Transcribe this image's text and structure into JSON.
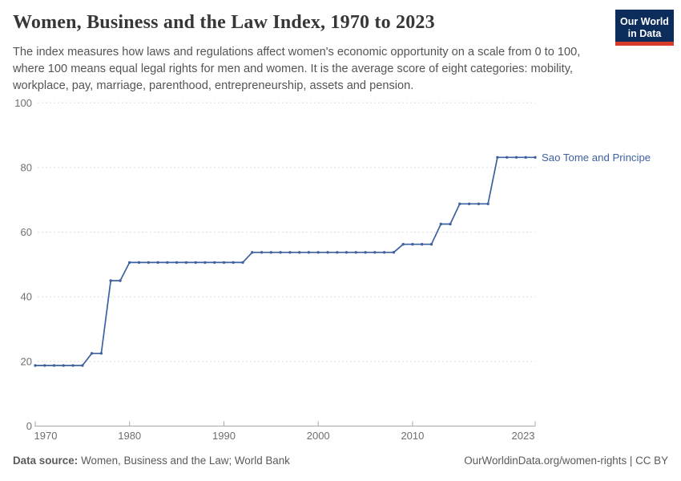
{
  "header": {
    "title": "Women, Business and the Law Index, 1970 to 2023",
    "subtitle_lines": [
      "The index measures how laws and regulations affect women's economic opportunity on a scale from 0 to 100,",
      "where 100 means equal legal rights for men and women. It is the average score of eight categories: mobility,",
      "workplace, pay, marriage, parenthood, entrepreneurship, assets and pension."
    ],
    "logo": {
      "line1": "Our World",
      "line2": "in Data"
    }
  },
  "chart_data": {
    "type": "line",
    "title": "Women, Business and the Law Index, 1970 to 2023",
    "xlabel": "",
    "ylabel": "",
    "xlim": [
      1970,
      2023
    ],
    "ylim": [
      0,
      100
    ],
    "xticks": [
      1970,
      1980,
      1990,
      2000,
      2010,
      2023
    ],
    "yticks": [
      0,
      20,
      40,
      60,
      80,
      100
    ],
    "grid": "horizontal-dashed",
    "legend_position": "end-of-line-label",
    "series": [
      {
        "name": "Sao Tome and Principe",
        "color": "#3d609f",
        "points": [
          [
            1970,
            18.75
          ],
          [
            1971,
            18.75
          ],
          [
            1972,
            18.75
          ],
          [
            1973,
            18.75
          ],
          [
            1974,
            18.75
          ],
          [
            1975,
            18.75
          ],
          [
            1976,
            22.5
          ],
          [
            1977,
            22.5
          ],
          [
            1978,
            45
          ],
          [
            1979,
            45
          ],
          [
            1980,
            50.625
          ],
          [
            1981,
            50.625
          ],
          [
            1982,
            50.625
          ],
          [
            1983,
            50.625
          ],
          [
            1984,
            50.625
          ],
          [
            1985,
            50.625
          ],
          [
            1986,
            50.625
          ],
          [
            1987,
            50.625
          ],
          [
            1988,
            50.625
          ],
          [
            1989,
            50.625
          ],
          [
            1990,
            50.625
          ],
          [
            1991,
            50.625
          ],
          [
            1992,
            50.625
          ],
          [
            1993,
            53.75
          ],
          [
            1994,
            53.75
          ],
          [
            1995,
            53.75
          ],
          [
            1996,
            53.75
          ],
          [
            1997,
            53.75
          ],
          [
            1998,
            53.75
          ],
          [
            1999,
            53.75
          ],
          [
            2000,
            53.75
          ],
          [
            2001,
            53.75
          ],
          [
            2002,
            53.75
          ],
          [
            2003,
            53.75
          ],
          [
            2004,
            53.75
          ],
          [
            2005,
            53.75
          ],
          [
            2006,
            53.75
          ],
          [
            2007,
            53.75
          ],
          [
            2008,
            53.75
          ],
          [
            2009,
            56.25
          ],
          [
            2010,
            56.25
          ],
          [
            2011,
            56.25
          ],
          [
            2012,
            56.25
          ],
          [
            2013,
            62.5
          ],
          [
            2014,
            62.5
          ],
          [
            2015,
            68.75
          ],
          [
            2016,
            68.75
          ],
          [
            2017,
            68.75
          ],
          [
            2018,
            68.75
          ],
          [
            2019,
            83.125
          ],
          [
            2020,
            83.125
          ],
          [
            2021,
            83.125
          ],
          [
            2022,
            83.125
          ],
          [
            2023,
            83.125
          ]
        ]
      }
    ],
    "colors": {
      "line": "#3d609f",
      "gridline": "#dcdcdc",
      "axis": "#a8a8a8",
      "tick_label": "#6e6e6e"
    }
  },
  "footer": {
    "source_label": "Data source:",
    "source_value": "Women, Business and the Law; World Bank",
    "url_text": "OurWorldinData.org/women-rights",
    "license_suffix": " | CC BY"
  }
}
